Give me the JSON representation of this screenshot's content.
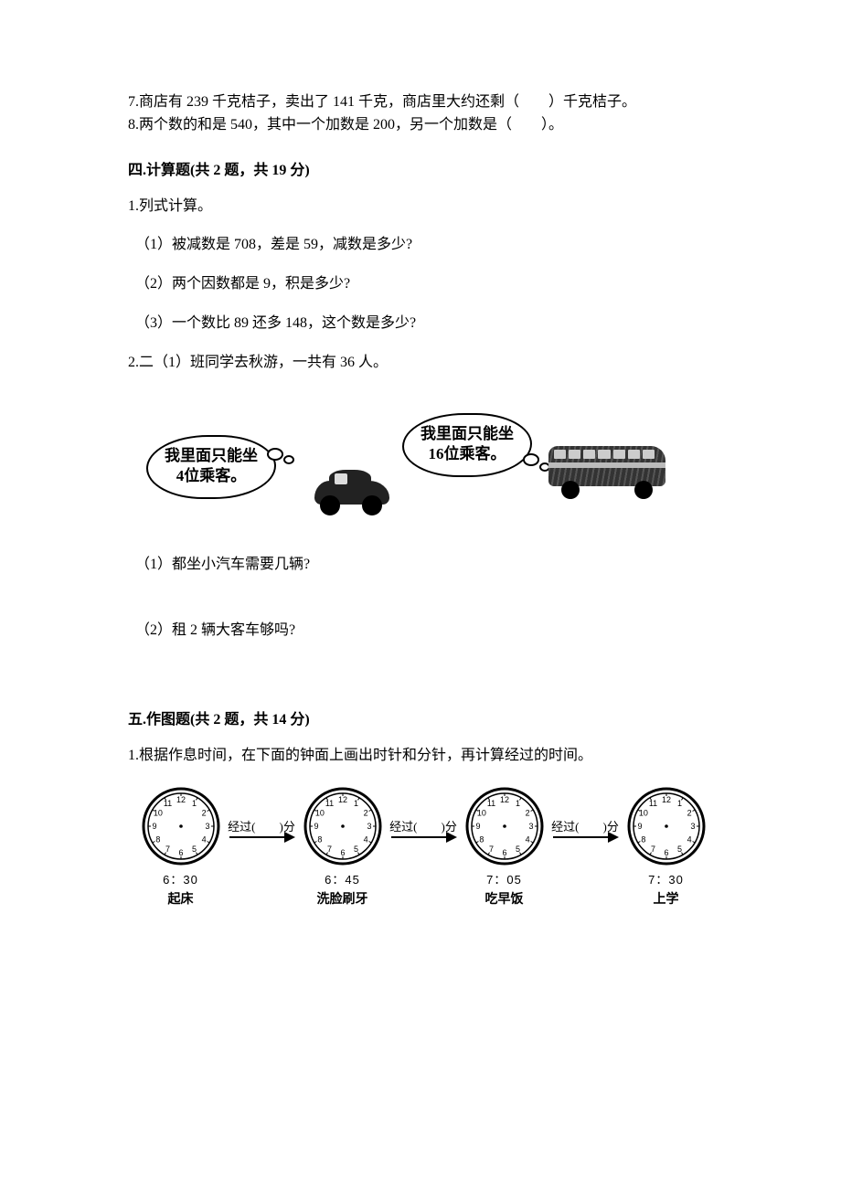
{
  "colors": {
    "text": "#000000",
    "bg": "#ffffff"
  },
  "q7": "7.商店有 239 千克桔子，卖出了 141 千克，商店里大约还剩（　　）千克桔子。",
  "q8": "8.两个数的和是 540，其中一个加数是 200，另一个加数是（　　）。",
  "section4": {
    "heading": "四.计算题(共 2 题，共 19 分)",
    "q1": {
      "stem": "1.列式计算。",
      "parts": {
        "a": "（1）被减数是 708，差是 59，减数是多少?",
        "b": "（2）两个因数都是 9，积是多少?",
        "c": "（3）一个数比 89 还多 148，这个数是多少?"
      }
    },
    "q2": {
      "stem": "2.二（1）班同学去秋游，一共有 36 人。",
      "car_bubble_l1": "我里面只能坐",
      "car_bubble_l2": "4位乘客。",
      "bus_bubble_l1": "我里面只能坐",
      "bus_bubble_l2": "16位乘客。",
      "p1": "（1）都坐小汽车需要几辆?",
      "p2": "（2）租 2 辆大客车够吗?"
    }
  },
  "section5": {
    "heading": "五.作图题(共 2 题，共 14 分)",
    "q1": "1.根据作息时间，在下面的钟面上画出时针和分针，再计算经过的时间。",
    "clocks": [
      {
        "time": "6：30",
        "caption": "起床"
      },
      {
        "time": "6：45",
        "caption": "洗脸刷牙"
      },
      {
        "time": "7：05",
        "caption": "吃早饭"
      },
      {
        "time": "7：30",
        "caption": "上学"
      }
    ],
    "gap_label": "经过(　　)分",
    "clock_numbers": [
      "12",
      "1",
      "2",
      "3",
      "4",
      "5",
      "6",
      "7",
      "8",
      "9",
      "10",
      "11"
    ],
    "clock_style": {
      "outer_stroke": "#000000",
      "outer_width": 3,
      "inner_width": 1.5,
      "num_fontsize": 9
    }
  }
}
